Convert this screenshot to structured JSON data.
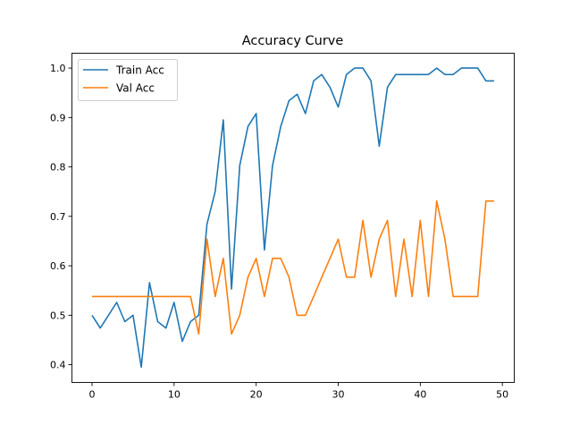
{
  "chart_data": {
    "type": "line",
    "title": "Accuracy Curve",
    "xlabel": "",
    "ylabel": "",
    "xlim": [
      -2.45,
      51.45
    ],
    "ylim": [
      0.364,
      1.03
    ],
    "xticks": [
      0,
      10,
      20,
      30,
      40,
      50
    ],
    "yticks": [
      0.4,
      0.5,
      0.6,
      0.7,
      0.8,
      0.9,
      1.0
    ],
    "xtick_labels": [
      "0",
      "10",
      "20",
      "30",
      "40",
      "50"
    ],
    "ytick_labels": [
      "0.4",
      "0.5",
      "0.6",
      "0.7",
      "0.8",
      "0.9",
      "1.0"
    ],
    "grid": false,
    "legend_position": "top-left",
    "x": [
      0,
      1,
      2,
      3,
      4,
      5,
      6,
      7,
      8,
      9,
      10,
      11,
      12,
      13,
      14,
      15,
      16,
      17,
      18,
      19,
      20,
      21,
      22,
      23,
      24,
      25,
      26,
      27,
      28,
      29,
      30,
      31,
      32,
      33,
      34,
      35,
      36,
      37,
      38,
      39,
      40,
      41,
      42,
      43,
      44,
      45,
      46,
      47,
      48,
      49
    ],
    "series": [
      {
        "name": "Train Acc",
        "color": "#1f77b4",
        "values": [
          0.5,
          0.474,
          0.5,
          0.526,
          0.487,
          0.5,
          0.395,
          0.566,
          0.487,
          0.474,
          0.526,
          0.447,
          0.487,
          0.5,
          0.684,
          0.75,
          0.895,
          0.553,
          0.803,
          0.882,
          0.908,
          0.632,
          0.803,
          0.882,
          0.934,
          0.947,
          0.908,
          0.974,
          0.987,
          0.961,
          0.921,
          0.987,
          1.0,
          1.0,
          0.974,
          0.842,
          0.961,
          0.987,
          0.987,
          0.987,
          0.987,
          0.987,
          1.0,
          0.987,
          0.987,
          1.0,
          1.0,
          1.0,
          0.974,
          0.974
        ]
      },
      {
        "name": "Val Acc",
        "color": "#ff7f0e",
        "values": [
          0.538,
          0.538,
          0.538,
          0.538,
          0.538,
          0.538,
          0.538,
          0.538,
          0.538,
          0.538,
          0.538,
          0.538,
          0.538,
          0.462,
          0.654,
          0.538,
          0.615,
          0.462,
          0.5,
          0.577,
          0.615,
          0.538,
          0.615,
          0.615,
          0.577,
          0.5,
          0.5,
          0.538,
          0.577,
          0.615,
          0.654,
          0.577,
          0.577,
          0.692,
          0.577,
          0.654,
          0.692,
          0.538,
          0.654,
          0.538,
          0.692,
          0.538,
          0.731,
          0.654,
          0.538,
          0.538,
          0.538,
          0.538,
          0.731,
          0.731
        ]
      }
    ]
  }
}
